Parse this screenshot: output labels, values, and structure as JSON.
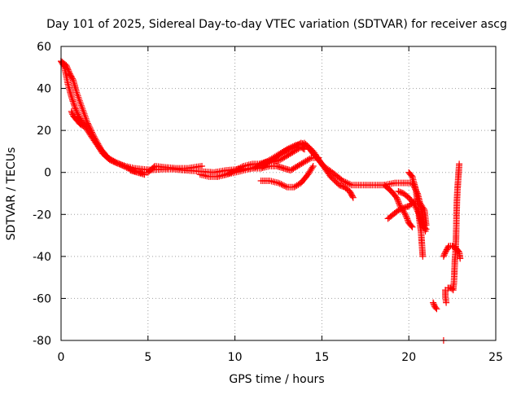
{
  "chart_data": {
    "type": "scatter",
    "title": "Day 101 of 2025, Sidereal Day-to-day VTEC variation (SDTVAR) for receiver ascg",
    "xlabel": "GPS time / hours",
    "ylabel": "SDTVAR / TECUs",
    "xlim": [
      0,
      25
    ],
    "ylim": [
      -80,
      60
    ],
    "xticks": [
      0,
      5,
      10,
      15,
      20,
      25
    ],
    "yticks": [
      60,
      40,
      20,
      0,
      -20,
      -40,
      -60,
      -80
    ],
    "xtick_labels": [
      "0",
      "5",
      "10",
      "15",
      "20",
      "25"
    ],
    "ytick_labels": [
      "60",
      "40",
      "20",
      "0",
      "-20",
      "-40",
      "-60",
      "-80"
    ],
    "grid": true,
    "marker": "+",
    "series_color": "#ff0000",
    "segments": [
      [
        [
          0.0,
          53
        ],
        [
          0.2,
          50
        ],
        [
          0.4,
          42
        ],
        [
          0.6,
          36
        ],
        [
          0.8,
          31
        ],
        [
          1.0,
          27
        ],
        [
          1.3,
          23
        ],
        [
          1.6,
          19
        ],
        [
          2.0,
          14
        ],
        [
          2.4,
          9
        ],
        [
          2.8,
          6
        ],
        [
          3.2,
          4.5
        ],
        [
          3.7,
          3
        ],
        [
          4.2,
          2
        ],
        [
          4.7,
          1.5
        ],
        [
          5.2,
          1.2
        ],
        [
          5.8,
          1.5
        ],
        [
          6.5,
          1.5
        ],
        [
          7.2,
          1
        ],
        [
          8.0,
          0.5
        ],
        [
          8.8,
          0
        ],
        [
          9.5,
          1
        ],
        [
          10.2,
          1.5
        ],
        [
          11.0,
          2
        ],
        [
          11.6,
          4
        ],
        [
          12.2,
          7
        ],
        [
          12.8,
          10
        ],
        [
          13.4,
          12
        ],
        [
          13.8,
          14
        ],
        [
          14.2,
          12
        ],
        [
          14.6,
          8
        ],
        [
          15.1,
          3
        ],
        [
          15.6,
          0
        ],
        [
          16.2,
          -4
        ],
        [
          16.7,
          -6
        ],
        [
          17.3,
          -6
        ],
        [
          18.0,
          -6
        ],
        [
          18.6,
          -6
        ],
        [
          19.2,
          -5
        ],
        [
          19.8,
          -5
        ],
        [
          20.2,
          -5
        ],
        [
          20.5,
          -10
        ],
        [
          20.8,
          -20
        ],
        [
          20.95,
          -28
        ]
      ],
      [
        [
          0.0,
          53
        ],
        [
          0.3,
          51
        ],
        [
          0.5,
          47
        ],
        [
          0.7,
          44
        ],
        [
          0.9,
          38
        ],
        [
          1.2,
          31
        ],
        [
          1.5,
          24
        ],
        [
          1.9,
          17
        ],
        [
          2.3,
          11
        ],
        [
          2.7,
          7
        ],
        [
          3.1,
          5
        ],
        [
          3.6,
          3
        ],
        [
          4.1,
          1
        ],
        [
          4.6,
          0
        ],
        [
          5.0,
          0
        ],
        [
          5.4,
          3
        ],
        [
          5.9,
          2.5
        ],
        [
          6.6,
          2
        ],
        [
          7.3,
          2
        ],
        [
          8.1,
          3
        ]
      ],
      [
        [
          0.6,
          29
        ],
        [
          0.7,
          27
        ],
        [
          0.9,
          25
        ],
        [
          1.1,
          23
        ],
        [
          1.3,
          22
        ]
      ],
      [
        [
          4.0,
          1
        ],
        [
          4.4,
          0
        ],
        [
          4.8,
          -1
        ]
      ],
      [
        [
          8.0,
          -1
        ],
        [
          8.5,
          -2
        ],
        [
          9.0,
          -2
        ],
        [
          9.5,
          -1
        ],
        [
          10.0,
          0
        ],
        [
          10.5,
          1
        ],
        [
          11.0,
          2
        ],
        [
          11.5,
          2
        ],
        [
          12.0,
          3
        ],
        [
          12.4,
          3
        ],
        [
          12.8,
          2
        ],
        [
          13.2,
          1
        ],
        [
          13.6,
          3
        ],
        [
          14.0,
          5
        ],
        [
          14.4,
          7
        ],
        [
          14.8,
          7
        ]
      ],
      [
        [
          9.0,
          -2
        ],
        [
          9.5,
          -1
        ],
        [
          10.0,
          1
        ],
        [
          10.5,
          3
        ],
        [
          11.0,
          4
        ],
        [
          11.4,
          4
        ],
        [
          11.8,
          5
        ],
        [
          12.2,
          5
        ],
        [
          12.6,
          6
        ],
        [
          13.0,
          8
        ],
        [
          13.4,
          10
        ],
        [
          13.8,
          12
        ],
        [
          14.0,
          11
        ]
      ],
      [
        [
          11.5,
          -4
        ],
        [
          12.0,
          -4
        ],
        [
          12.5,
          -5
        ],
        [
          13.0,
          -7
        ],
        [
          13.4,
          -7
        ],
        [
          13.8,
          -5
        ],
        [
          14.2,
          -1
        ],
        [
          14.5,
          3
        ]
      ],
      [
        [
          11.5,
          2
        ],
        [
          12.0,
          5
        ],
        [
          12.5,
          8
        ],
        [
          13.0,
          11
        ],
        [
          13.5,
          13
        ],
        [
          14.0,
          14
        ],
        [
          14.5,
          10
        ],
        [
          15.0,
          4
        ],
        [
          15.5,
          -2
        ],
        [
          16.0,
          -6
        ],
        [
          16.3,
          -7
        ],
        [
          16.6,
          -9
        ],
        [
          16.8,
          -12
        ]
      ],
      [
        [
          18.6,
          -6
        ],
        [
          19.0,
          -9
        ],
        [
          19.3,
          -12
        ],
        [
          19.5,
          -16
        ],
        [
          19.8,
          -20
        ],
        [
          20.0,
          -24
        ],
        [
          20.2,
          -26
        ]
      ],
      [
        [
          18.8,
          -22
        ],
        [
          19.1,
          -20
        ],
        [
          19.4,
          -18
        ],
        [
          19.7,
          -17
        ],
        [
          20.0,
          -16
        ],
        [
          20.3,
          -14
        ],
        [
          20.6,
          -14
        ],
        [
          20.9,
          -18
        ],
        [
          21.0,
          -25
        ]
      ],
      [
        [
          19.4,
          -9
        ],
        [
          19.7,
          -10
        ],
        [
          20.0,
          -12
        ],
        [
          20.3,
          -15
        ],
        [
          20.6,
          -20
        ],
        [
          20.8,
          -26
        ],
        [
          21.0,
          -27
        ]
      ],
      [
        [
          20.0,
          0
        ],
        [
          20.2,
          -2
        ],
        [
          20.4,
          -8
        ],
        [
          20.5,
          -14
        ],
        [
          20.6,
          -22
        ],
        [
          20.7,
          -28
        ],
        [
          20.75,
          -34
        ],
        [
          20.8,
          -40
        ]
      ],
      [
        [
          21.4,
          -62
        ],
        [
          21.5,
          -64
        ],
        [
          21.6,
          -65
        ]
      ],
      [
        [
          22.0,
          -80
        ]
      ],
      [
        [
          22.0,
          -40
        ],
        [
          22.1,
          -38
        ],
        [
          22.3,
          -35
        ],
        [
          22.5,
          -35
        ],
        [
          22.7,
          -36
        ],
        [
          22.9,
          -38
        ],
        [
          22.95,
          -41
        ]
      ],
      [
        [
          22.1,
          -56
        ],
        [
          22.1,
          -59
        ],
        [
          22.15,
          -62
        ]
      ],
      [
        [
          22.25,
          -55
        ],
        [
          22.4,
          -55
        ],
        [
          22.55,
          -56
        ],
        [
          22.6,
          -52
        ],
        [
          22.62,
          -48
        ],
        [
          22.65,
          -42
        ],
        [
          22.7,
          -36
        ],
        [
          22.72,
          -30
        ],
        [
          22.74,
          -22
        ],
        [
          22.76,
          -15
        ],
        [
          22.8,
          -8
        ],
        [
          22.85,
          -2
        ],
        [
          22.9,
          4
        ]
      ]
    ]
  }
}
